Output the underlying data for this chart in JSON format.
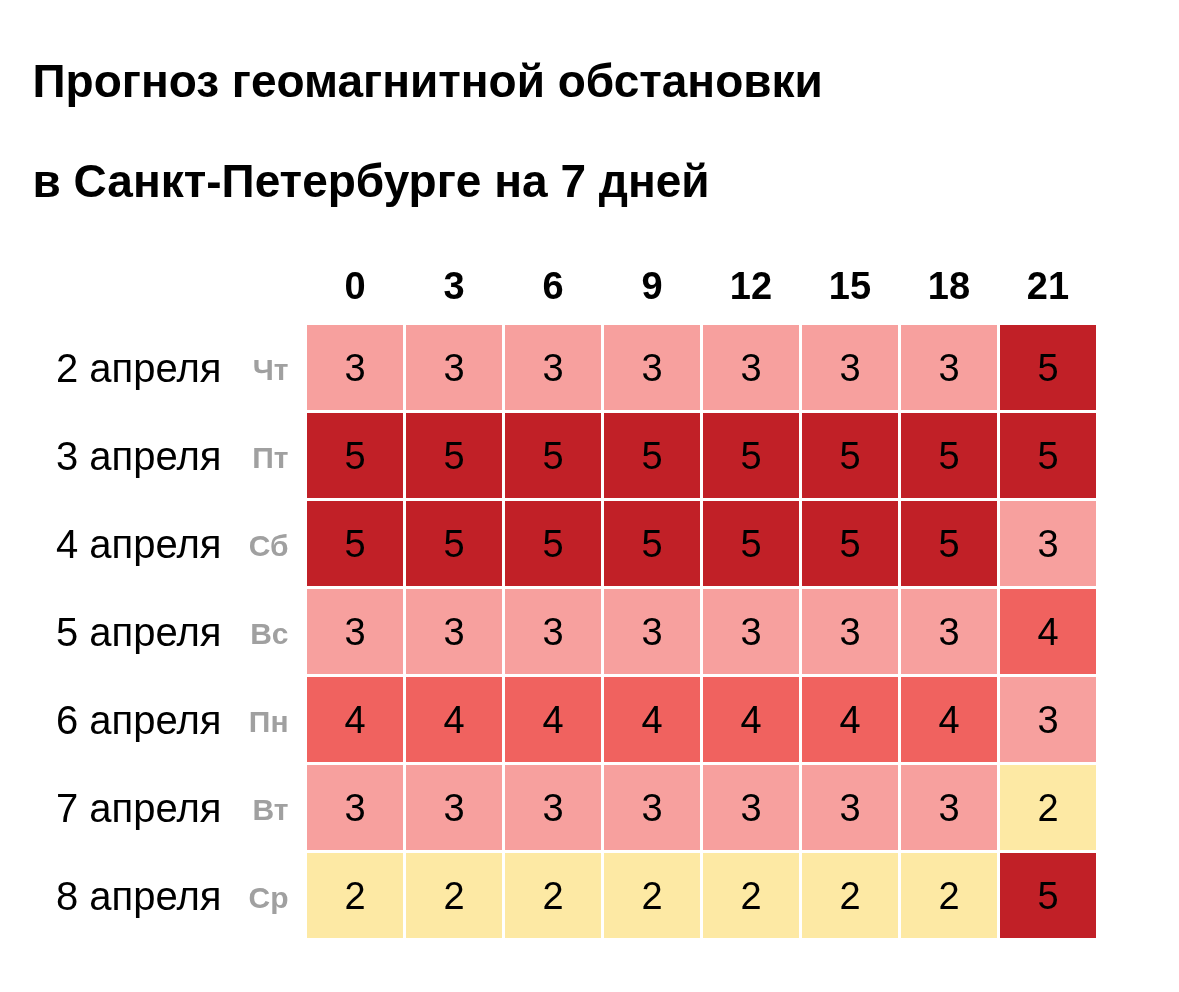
{
  "chart_data": {
    "type": "heatmap",
    "title": "Прогноз геомагнитной обстановки\nв Санкт-Петербурге на 7 дней",
    "categories": [
      "0",
      "3",
      "6",
      "9",
      "12",
      "15",
      "18",
      "21"
    ],
    "y_categories": [
      "2 апреля Чт",
      "3 апреля Пт",
      "4 апреля Сб",
      "5 апреля Вс",
      "6 апреля Пн",
      "7 апреля Вт",
      "8 апреля Ср"
    ],
    "cells": [
      [
        3,
        3,
        3,
        3,
        3,
        3,
        3,
        5
      ],
      [
        5,
        5,
        5,
        5,
        5,
        5,
        5,
        5
      ],
      [
        5,
        5,
        5,
        5,
        5,
        5,
        5,
        3
      ],
      [
        3,
        3,
        3,
        3,
        3,
        3,
        3,
        4
      ],
      [
        4,
        4,
        4,
        4,
        4,
        4,
        4,
        3
      ],
      [
        3,
        3,
        3,
        3,
        3,
        3,
        3,
        2
      ],
      [
        2,
        2,
        2,
        2,
        2,
        2,
        2,
        5
      ]
    ],
    "colors": [
      "#fde9a4",
      "#f7a09e",
      "#f0625f",
      "#c12027"
    ],
    "data_labels": true
  }
}
